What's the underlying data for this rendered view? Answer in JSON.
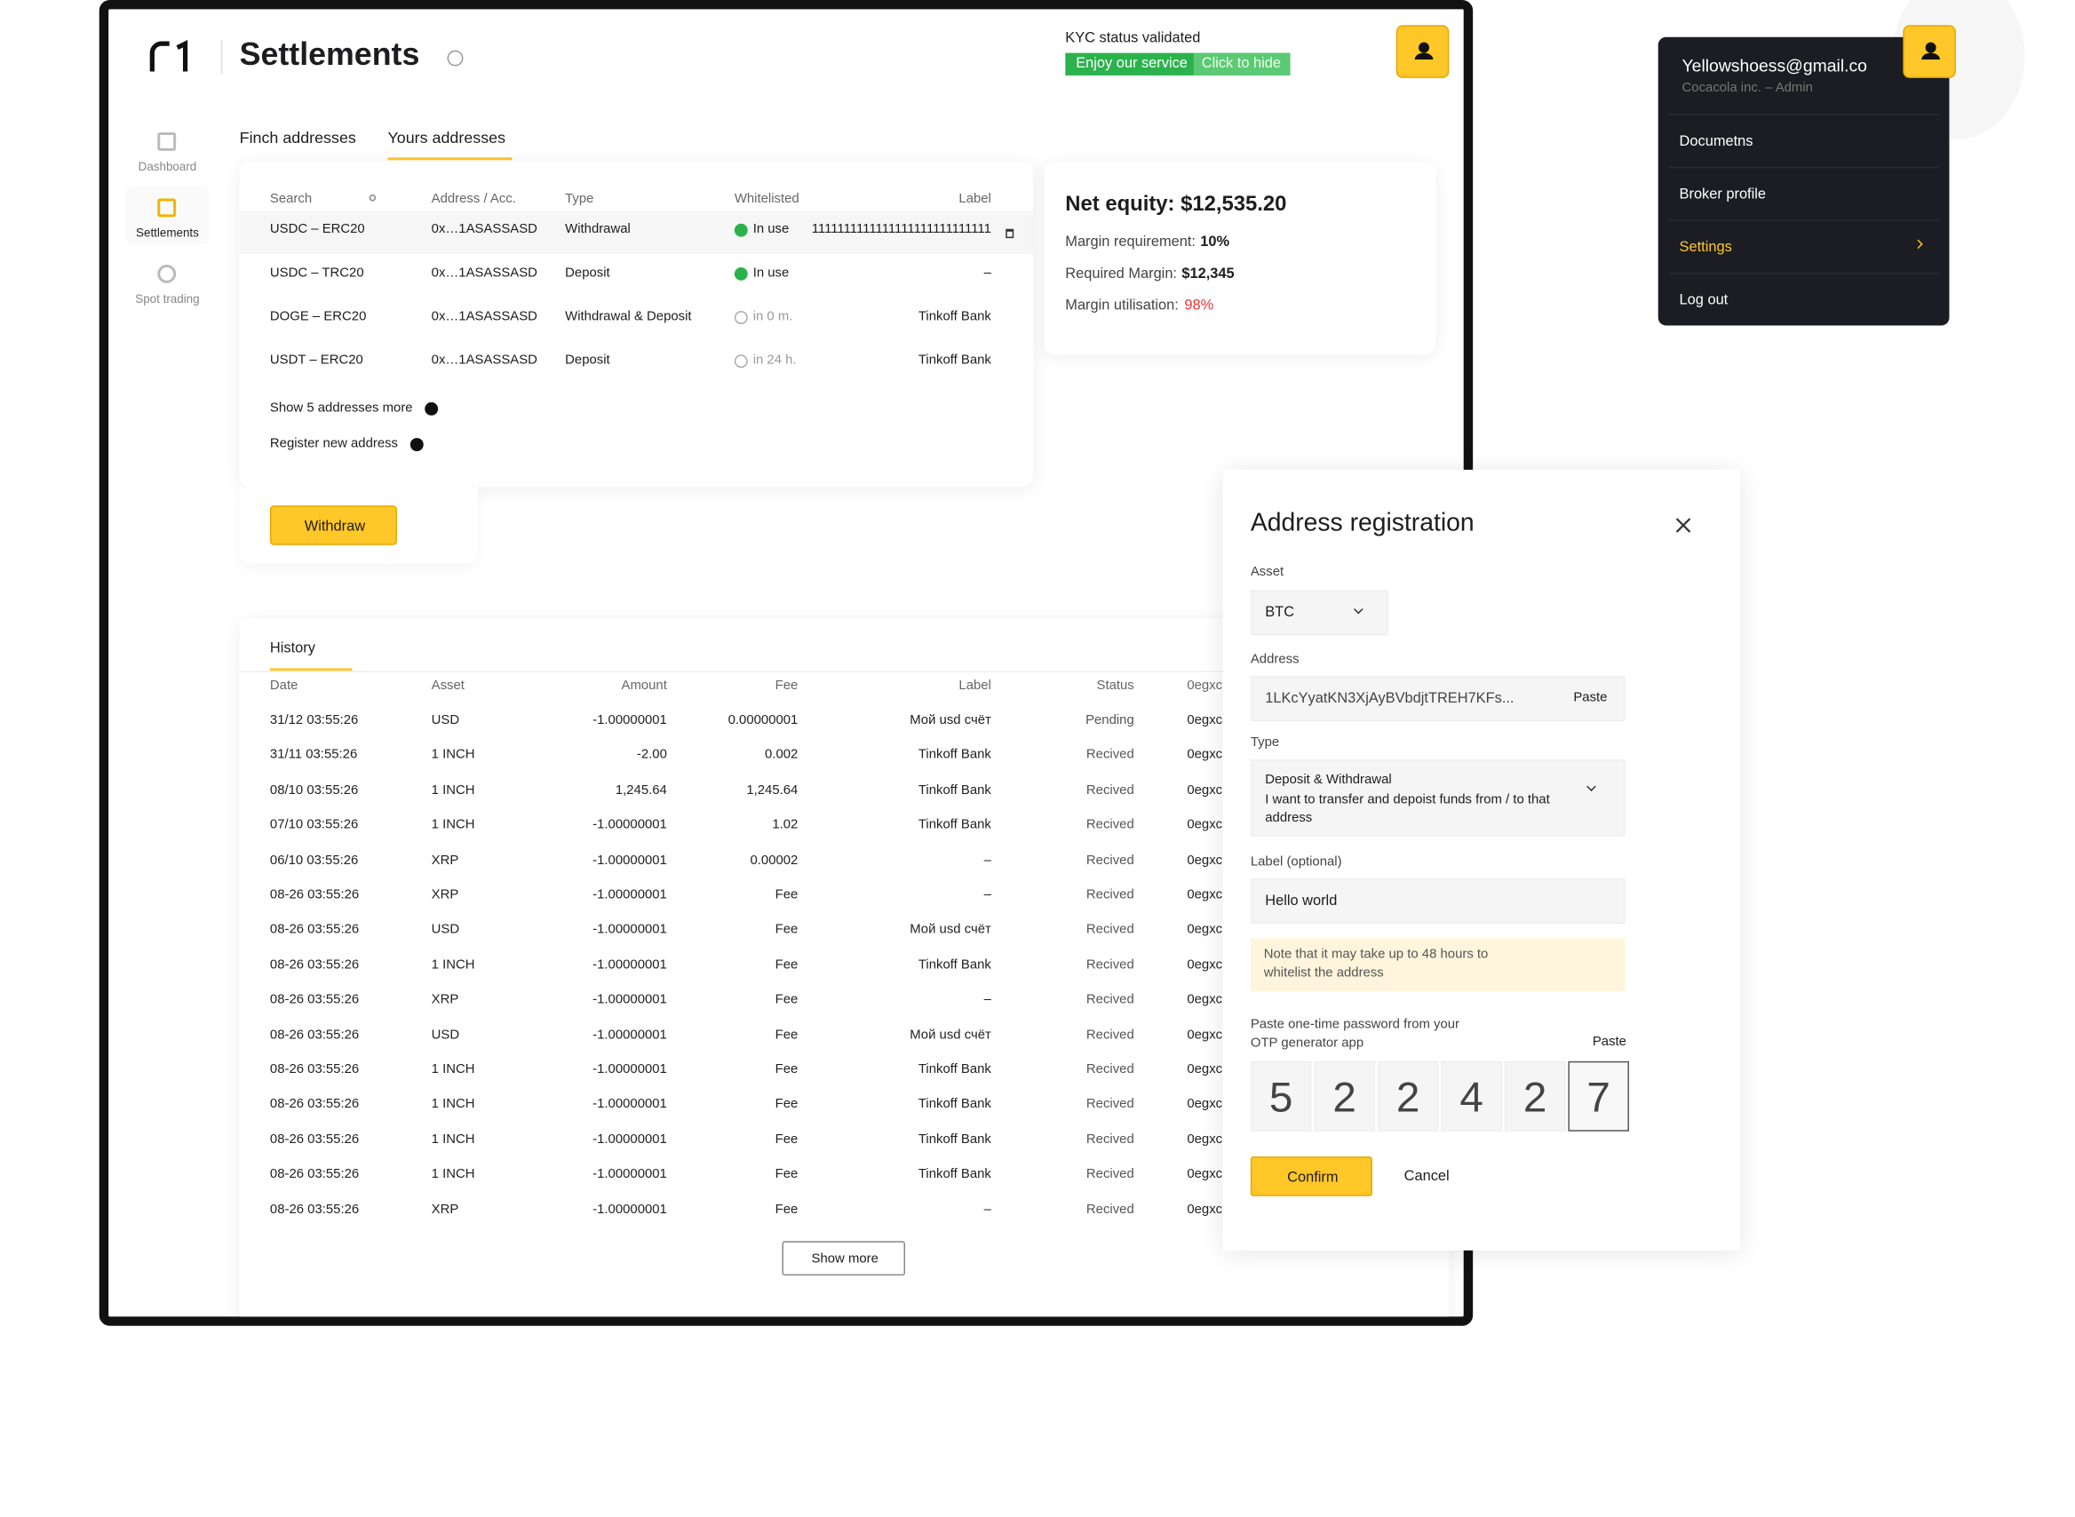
{
  "header": {
    "title": "Settlements",
    "kyc_status": "KYC status validated",
    "kyc_badge": "Enjoy our service",
    "kyc_hide": "Click to hide"
  },
  "sidebar": [
    "Dashboard",
    "Settlements",
    "Spot trading"
  ],
  "tabs": [
    "Finch addresses",
    "Yours addresses"
  ],
  "addresses": {
    "columns": [
      "Search",
      "Address / Acc.",
      "Type",
      "Whitelisted",
      "Label"
    ],
    "rows": [
      [
        "USDC – ERC20",
        "0x…1ASASSASD",
        "Withdrawal",
        "In use",
        "1111111111111111111111111111"
      ],
      [
        "USDC – TRC20",
        "0x…1ASASSASD",
        "Deposit",
        "In use",
        "–"
      ],
      [
        "DOGE – ERC20",
        "0x…1ASASSASD",
        "Withdrawal & Deposit",
        "in 0 m.",
        "Tinkoff Bank"
      ],
      [
        "USDT – ERC20",
        "0x…1ASASSASD",
        "Deposit",
        "in 24 h.",
        "Tinkoff Bank"
      ]
    ],
    "show_more": "Show 5 addresses more",
    "register": "Register new address"
  },
  "withdraw": "Withdraw",
  "equity": {
    "title": "Net equity: $12,535.20",
    "items": [
      {
        "label": "Margin requirement:",
        "value": "10%"
      },
      {
        "label": "Required Margin:",
        "value": "$12,345"
      },
      {
        "label": "Margin utilisation:",
        "value": "98%"
      }
    ]
  },
  "history": {
    "tab": "History",
    "columns": [
      "Date",
      "Asset",
      "Amount",
      "Fee",
      "Label",
      "Status",
      "0egxc"
    ],
    "rows": [
      [
        "31/12 03:55:26",
        "USD",
        "-1.00000001",
        "0.00000001",
        "Мой usd счёт",
        "Pending",
        "0egxc"
      ],
      [
        "31/11 03:55:26",
        "1 INCH",
        "-2.00",
        "0.002",
        "Tinkoff Bank",
        "Recived",
        "0egxc"
      ],
      [
        "08/10 03:55:26",
        "1 INCH",
        "1,245.64",
        "1,245.64",
        "Tinkoff Bank",
        "Recived",
        "0egxc"
      ],
      [
        "07/10 03:55:26",
        "1 INCH",
        "-1.00000001",
        "1.02",
        "Tinkoff Bank",
        "Recived",
        "0egxc"
      ],
      [
        "06/10 03:55:26",
        "XRP",
        "-1.00000001",
        "0.00002",
        "–",
        "Recived",
        "0egxc"
      ],
      [
        "08-26 03:55:26",
        "XRP",
        "-1.00000001",
        "Fee",
        "–",
        "Recived",
        "0egxc"
      ],
      [
        "08-26 03:55:26",
        "USD",
        "-1.00000001",
        "Fee",
        "Мой usd счёт",
        "Recived",
        "0egxc"
      ],
      [
        "08-26 03:55:26",
        "1 INCH",
        "-1.00000001",
        "Fee",
        "Tinkoff Bank",
        "Recived",
        "0egxc"
      ],
      [
        "08-26 03:55:26",
        "XRP",
        "-1.00000001",
        "Fee",
        "–",
        "Recived",
        "0egxc"
      ],
      [
        "08-26 03:55:26",
        "USD",
        "-1.00000001",
        "Fee",
        "Мой usd счёт",
        "Recived",
        "0egxc"
      ],
      [
        "08-26 03:55:26",
        "1 INCH",
        "-1.00000001",
        "Fee",
        "Tinkoff Bank",
        "Recived",
        "0egxc"
      ],
      [
        "08-26 03:55:26",
        "1 INCH",
        "-1.00000001",
        "Fee",
        "Tinkoff Bank",
        "Recived",
        "0egxc"
      ],
      [
        "08-26 03:55:26",
        "1 INCH",
        "-1.00000001",
        "Fee",
        "Tinkoff Bank",
        "Recived",
        "0egxc"
      ],
      [
        "08-26 03:55:26",
        "1 INCH",
        "-1.00000001",
        "Fee",
        "Tinkoff Bank",
        "Recived",
        "0egxc"
      ],
      [
        "08-26 03:55:26",
        "XRP",
        "-1.00000001",
        "Fee",
        "–",
        "Recived",
        "0egxc"
      ]
    ],
    "show_more": "Show more"
  },
  "menu": {
    "email": "Yellowshoess@gmail.co",
    "role": "Cocacola inc. – Admin",
    "items": [
      "Documetns",
      "Broker profile",
      "Settings",
      "Log out"
    ]
  },
  "modal": {
    "title": "Address registration",
    "asset_label": "Asset",
    "asset": "BTC",
    "address_label": "Address",
    "address": "1LKcYyatKN3XjAyBVbdjtTREH7KFs...",
    "paste": "Paste",
    "type_label": "Type",
    "type": "Deposit & Withdrawal",
    "type_desc": "I want to transfer and depoist funds from / to that address",
    "label_label": "Label (optional)",
    "label": "Hello world",
    "note": "Note that it may take up to 48 hours to whitelist the address",
    "otp_label": "Paste one-time password from your OTP generator app",
    "otp_paste": "Paste",
    "otp": [
      "5",
      "2",
      "2",
      "4",
      "2",
      "7"
    ],
    "confirm": "Confirm",
    "cancel": "Cancel"
  }
}
